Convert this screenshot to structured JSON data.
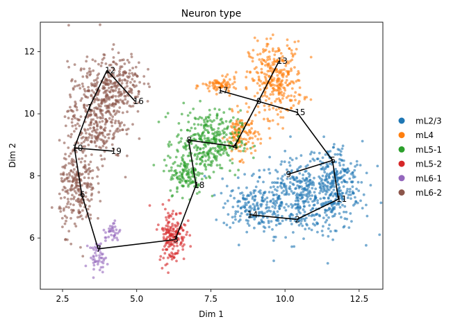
{
  "chart_data": {
    "type": "scatter",
    "title": "Neuron type",
    "xlabel": "Dim 1",
    "ylabel": "Dim 2",
    "xlim": [
      1.75,
      13.3
    ],
    "ylim": [
      4.35,
      12.95
    ],
    "xticks": [
      2.5,
      5.0,
      7.5,
      10.0,
      12.5
    ],
    "xtick_labels": [
      "2.5",
      "5.0",
      "7.5",
      "10.0",
      "12.5"
    ],
    "yticks": [
      6,
      8,
      10,
      12
    ],
    "ytick_labels": [
      "6",
      "8",
      "10",
      "12"
    ],
    "grid": false,
    "legend_position": "right",
    "series": [
      {
        "name": "mL2/3",
        "color": "#1f77b4",
        "count": 820,
        "regions": [
          {
            "cx": 10.6,
            "cy": 7.3,
            "rx": 1.9,
            "ry": 1.2,
            "w": 0.6
          },
          {
            "cx": 11.7,
            "cy": 7.8,
            "rx": 0.9,
            "ry": 1.3,
            "w": 0.25
          },
          {
            "cx": 8.8,
            "cy": 7.0,
            "rx": 0.9,
            "ry": 0.7,
            "w": 0.15
          }
        ]
      },
      {
        "name": "mL4",
        "color": "#ff7f0e",
        "count": 520,
        "regions": [
          {
            "cx": 9.7,
            "cy": 11.1,
            "rx": 0.9,
            "ry": 1.2,
            "w": 0.6
          },
          {
            "cx": 8.5,
            "cy": 9.3,
            "rx": 0.5,
            "ry": 0.7,
            "w": 0.25
          },
          {
            "cx": 7.8,
            "cy": 10.9,
            "rx": 0.6,
            "ry": 0.25,
            "w": 0.15
          }
        ]
      },
      {
        "name": "mL5-1",
        "color": "#2ca02c",
        "count": 460,
        "regions": [
          {
            "cx": 7.4,
            "cy": 9.1,
            "rx": 1.1,
            "ry": 1.0,
            "w": 0.75
          },
          {
            "cx": 6.7,
            "cy": 8.0,
            "rx": 0.6,
            "ry": 0.6,
            "w": 0.25
          }
        ]
      },
      {
        "name": "mL5-2",
        "color": "#d62728",
        "count": 170,
        "regions": [
          {
            "cx": 6.2,
            "cy": 6.1,
            "rx": 0.45,
            "ry": 0.9,
            "w": 1.0
          }
        ]
      },
      {
        "name": "mL6-1",
        "color": "#9467bd",
        "count": 85,
        "regions": [
          {
            "cx": 3.7,
            "cy": 5.4,
            "rx": 0.3,
            "ry": 0.45,
            "w": 0.6
          },
          {
            "cx": 4.2,
            "cy": 6.2,
            "rx": 0.25,
            "ry": 0.35,
            "w": 0.4
          }
        ]
      },
      {
        "name": "mL6-2",
        "color": "#8c564b",
        "count": 820,
        "regions": [
          {
            "cx": 3.6,
            "cy": 10.0,
            "rx": 0.9,
            "ry": 1.6,
            "w": 0.45
          },
          {
            "cx": 4.4,
            "cy": 11.0,
            "rx": 0.8,
            "ry": 1.0,
            "w": 0.25
          },
          {
            "cx": 3.0,
            "cy": 7.6,
            "rx": 0.6,
            "ry": 1.4,
            "w": 0.3
          }
        ]
      }
    ],
    "graph_nodes": [
      {
        "id": "0",
        "x": 9.1,
        "y": 10.4
      },
      {
        "id": "1",
        "x": 3.4,
        "y": 10.2
      },
      {
        "id": "2",
        "x": 10.4,
        "y": 6.6
      },
      {
        "id": "3",
        "x": 6.3,
        "y": 5.95
      },
      {
        "id": "4",
        "x": 8.3,
        "y": 8.95
      },
      {
        "id": "5",
        "x": 11.6,
        "y": 8.5
      },
      {
        "id": "6",
        "x": 3.15,
        "y": 7.4
      },
      {
        "id": "7",
        "x": 3.7,
        "y": 5.65
      },
      {
        "id": "8",
        "x": 6.75,
        "y": 9.15
      },
      {
        "id": "9",
        "x": 10.1,
        "y": 8.05
      },
      {
        "id": "10",
        "x": 2.9,
        "y": 8.9
      },
      {
        "id": "11",
        "x": 11.8,
        "y": 7.25
      },
      {
        "id": "12",
        "x": 4.0,
        "y": 11.4
      },
      {
        "id": "13",
        "x": 9.8,
        "y": 11.7
      },
      {
        "id": "14",
        "x": 8.8,
        "y": 6.75
      },
      {
        "id": "15",
        "x": 10.4,
        "y": 10.05
      },
      {
        "id": "16",
        "x": 4.95,
        "y": 10.4
      },
      {
        "id": "17",
        "x": 7.8,
        "y": 10.75
      },
      {
        "id": "18",
        "x": 7.0,
        "y": 7.7
      },
      {
        "id": "19",
        "x": 4.2,
        "y": 8.8
      }
    ],
    "graph_edges": [
      [
        "0",
        "13"
      ],
      [
        "0",
        "17"
      ],
      [
        "0",
        "15"
      ],
      [
        "0",
        "4"
      ],
      [
        "15",
        "5"
      ],
      [
        "5",
        "9"
      ],
      [
        "5",
        "11"
      ],
      [
        "11",
        "2"
      ],
      [
        "2",
        "14"
      ],
      [
        "4",
        "8"
      ],
      [
        "8",
        "18"
      ],
      [
        "18",
        "3"
      ],
      [
        "3",
        "7"
      ],
      [
        "7",
        "6"
      ],
      [
        "6",
        "10"
      ],
      [
        "10",
        "19"
      ],
      [
        "10",
        "1"
      ],
      [
        "1",
        "12"
      ],
      [
        "12",
        "16"
      ]
    ]
  }
}
